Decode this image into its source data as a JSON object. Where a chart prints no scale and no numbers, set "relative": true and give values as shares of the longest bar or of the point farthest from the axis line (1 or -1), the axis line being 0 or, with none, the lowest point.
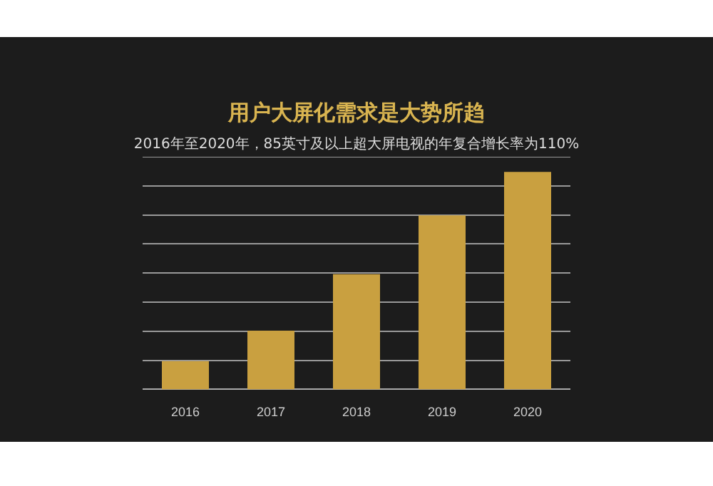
{
  "chart_data": {
    "type": "bar",
    "title": "用户大屏化需求是大势所趋",
    "subtitle": "2016年至2020年，85英寸及以上超大屏电视的年复合增长率为110%",
    "categories": [
      "2016",
      "2017",
      "2018",
      "2019",
      "2020"
    ],
    "values": [
      0.13,
      0.27,
      0.53,
      0.8,
      1
    ],
    "color": "#c9a040",
    "relative": true,
    "grid": "y"
  }
}
